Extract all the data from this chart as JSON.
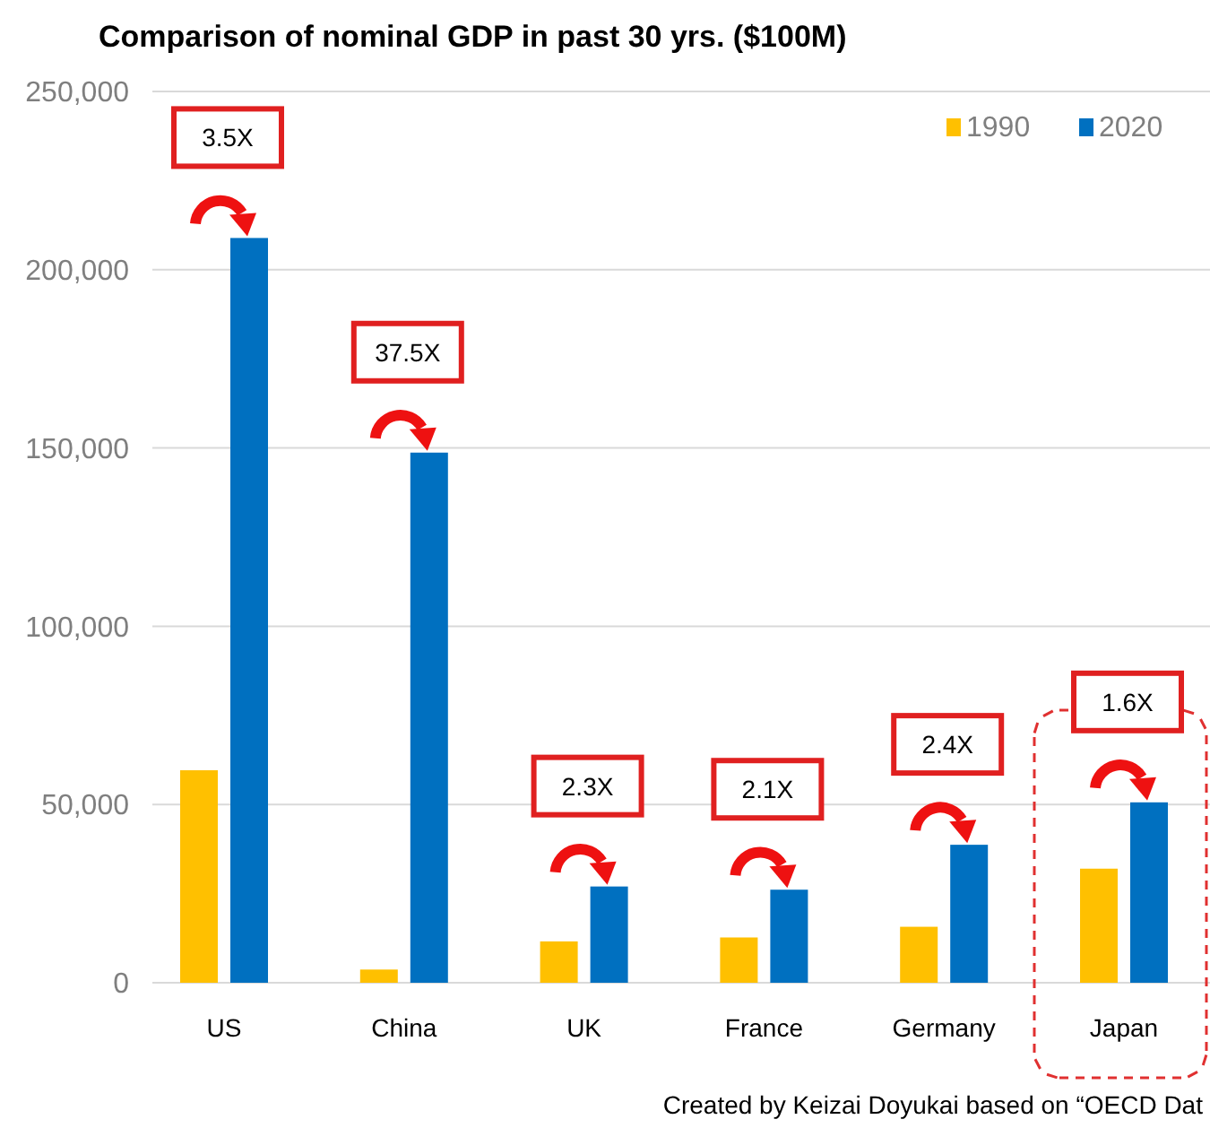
{
  "chart_data": {
    "type": "bar",
    "title": "Comparison of nominal GDP in past 30 yrs. ($100M)",
    "categories": [
      "US",
      "China",
      "UK",
      "France",
      "Germany",
      "Japan"
    ],
    "series": [
      {
        "name": "1990",
        "color": "#ffc000",
        "values": [
          59600,
          3700,
          11600,
          12700,
          15700,
          32000
        ]
      },
      {
        "name": "2020",
        "color": "#0070c0",
        "values": [
          208900,
          148700,
          27000,
          26100,
          38700,
          50600
        ]
      }
    ],
    "ylim": [
      0,
      250000
    ],
    "yticks": [
      {
        "value": 0,
        "label": "0"
      },
      {
        "value": 50000,
        "label": "50,000"
      },
      {
        "value": 100000,
        "label": "100,000"
      },
      {
        "value": 150000,
        "label": "150,000"
      },
      {
        "value": 200000,
        "label": "200,000"
      },
      {
        "value": 250000,
        "label": "250,000"
      }
    ],
    "grid": "y",
    "legend": "top right",
    "annotations": [
      "3.5X",
      "37.5X",
      "2.3X",
      "2.1X",
      "2.4X",
      "1.6X",
      "Created by Keizai Doyukai based on “OECD Dat"
    ]
  }
}
